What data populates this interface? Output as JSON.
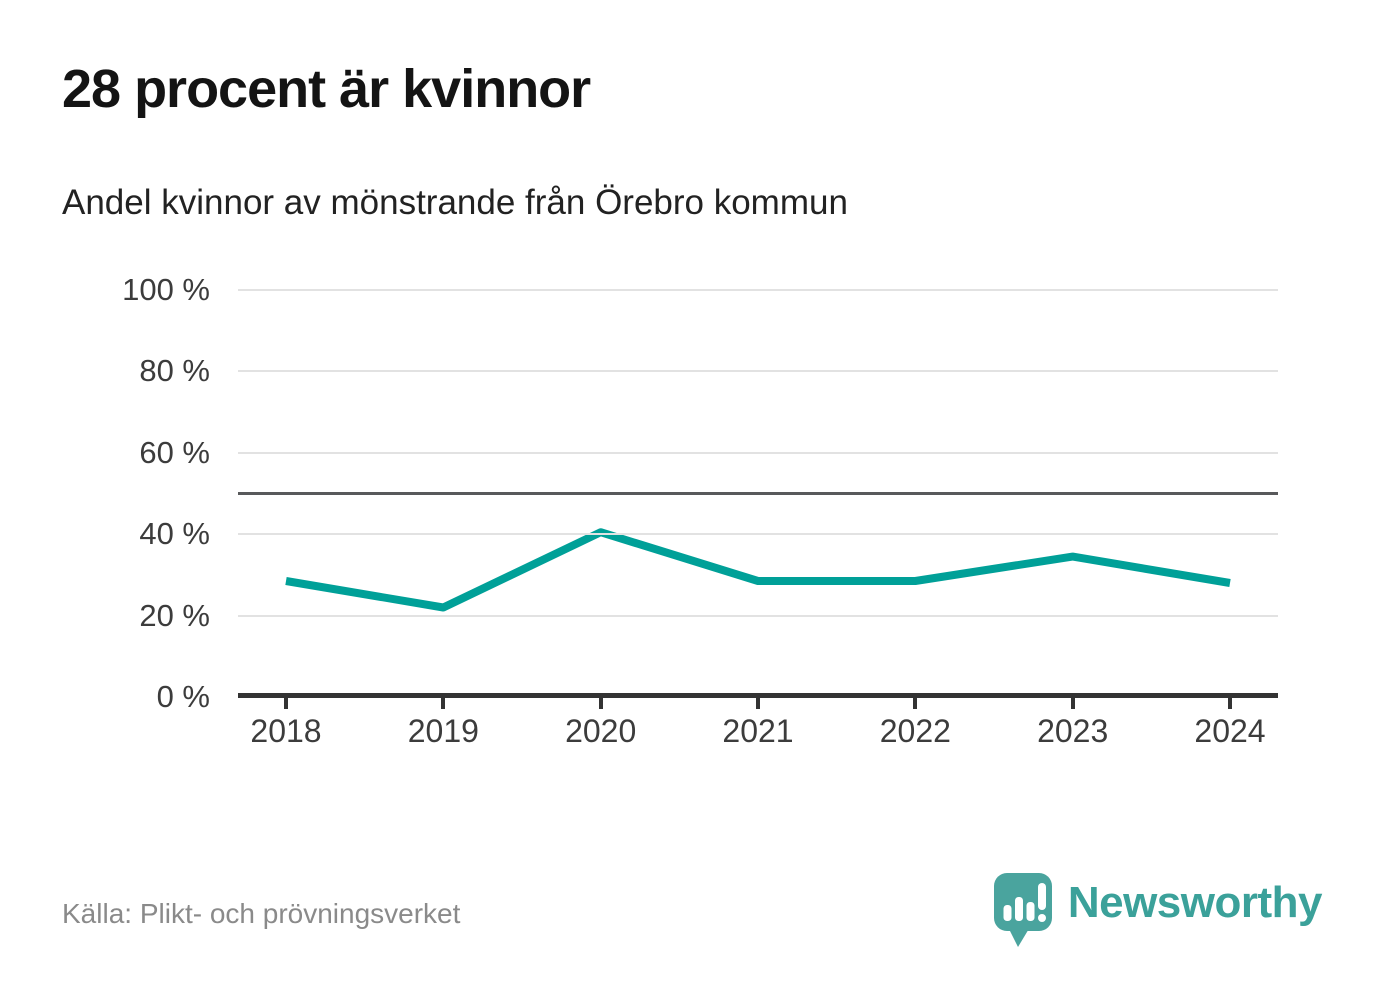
{
  "title": "28 procent är kvinnor",
  "subtitle": "Andel kvinnor av mönstrande från Örebro kommun",
  "source": "Källa: Plikt- och prövningsverket",
  "logo": {
    "brand": "Newsworthy"
  },
  "colors": {
    "line": "#00a098",
    "grid": "#e2e2e2",
    "reference": "#58595b",
    "axis": "#333333",
    "tick_label": "#3c3c3c",
    "source_text": "#8a8a8a",
    "logo": "#3ba19a",
    "logo_bubble": "#4aa49e"
  },
  "chart_data": {
    "type": "line",
    "title": "28 procent är kvinnor",
    "subtitle": "Andel kvinnor av mönstrande från Örebro kommun",
    "x": [
      2018,
      2019,
      2020,
      2021,
      2022,
      2023,
      2024
    ],
    "series": [
      {
        "name": "Andel kvinnor av mönstrande",
        "values": [
          28.5,
          22,
          40.5,
          28.5,
          28.5,
          34.5,
          28
        ]
      }
    ],
    "xlabel": "",
    "ylabel": "",
    "ylim": [
      0,
      100
    ],
    "yticks": [
      0,
      20,
      40,
      60,
      80,
      100
    ],
    "ytick_format": "{v} %",
    "reference_line": 50,
    "grid": "horizontal",
    "legend": "none",
    "line_width": 8
  }
}
